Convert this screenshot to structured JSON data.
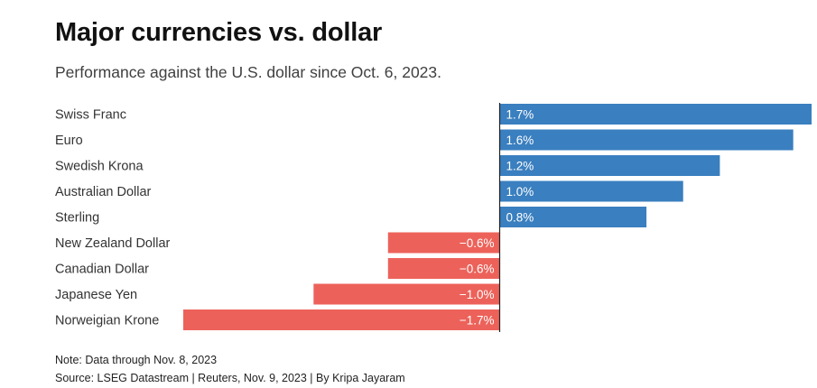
{
  "header": {
    "title": "Major currencies vs. dollar",
    "subtitle": "Performance against the U.S. dollar since Oct. 6, 2023."
  },
  "footer": {
    "note": "Note: Data through Nov. 8, 2023",
    "source": "Source: LSEG Datastream | Reuters, Nov. 9, 2023 | By Kripa Jayaram"
  },
  "colors": {
    "positive": "#3a7fbf",
    "negative": "#ec625a",
    "axis": "#222222"
  },
  "chart_data": {
    "type": "bar",
    "orientation": "horizontal",
    "title": "Major currencies vs. dollar",
    "subtitle": "Performance against the U.S. dollar since Oct. 6, 2023.",
    "xlabel": "",
    "ylabel": "",
    "unit": "%",
    "xlim": [
      -1.7,
      1.7
    ],
    "categories": [
      "Swiss Franc",
      "Euro",
      "Swedish Krona",
      "Australian Dollar",
      "Sterling",
      "New Zealand Dollar",
      "Canadian Dollar",
      "Japanese Yen",
      "Norweigian Krone"
    ],
    "values": [
      1.7,
      1.6,
      1.2,
      1.0,
      0.8,
      -0.6,
      -0.6,
      -1.0,
      -1.7
    ],
    "value_labels": [
      "1.7%",
      "1.6%",
      "1.2%",
      "1.0%",
      "0.8%",
      "−0.6%",
      "−0.6%",
      "−1.0%",
      "−1.7%"
    ]
  }
}
